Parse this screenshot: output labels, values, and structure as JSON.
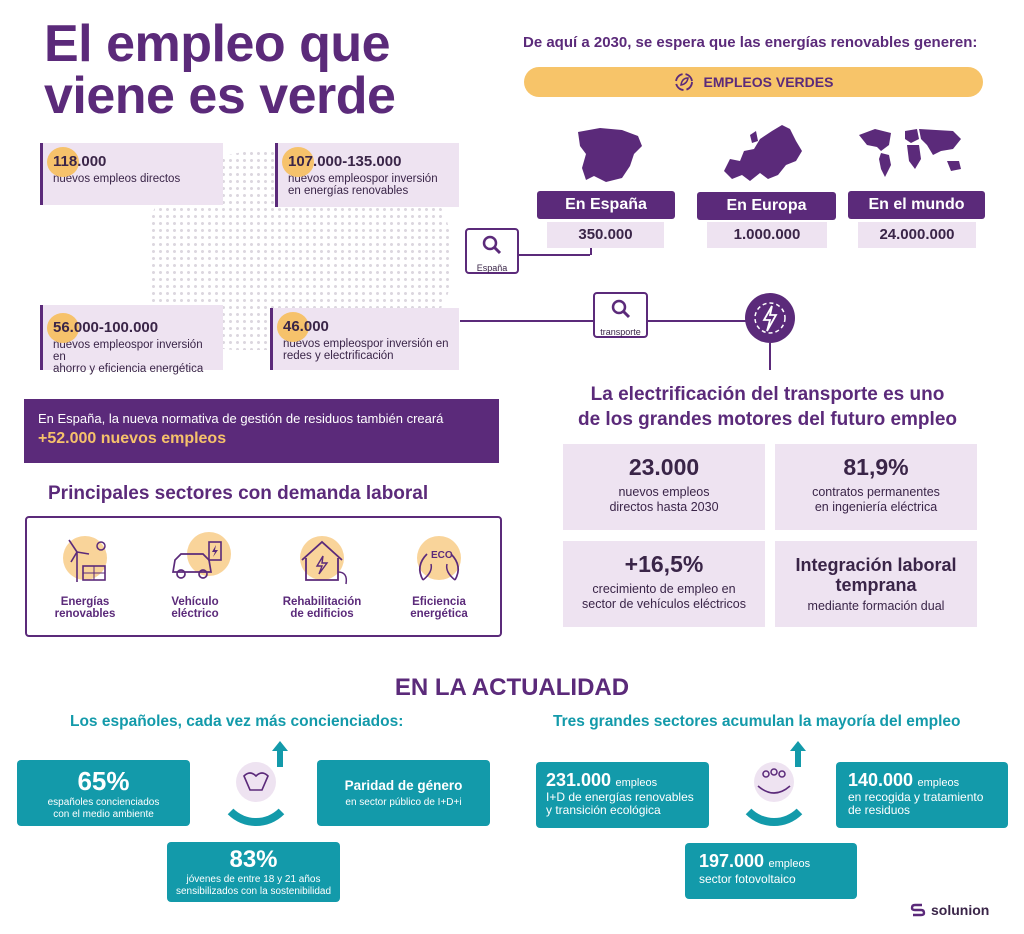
{
  "title": {
    "line1": "El empleo que",
    "line2": "viene es verde"
  },
  "spain_stats": [
    {
      "number": "118.000",
      "text": "nuevos empleos directos"
    },
    {
      "number": "107.000-135.000",
      "text1": "nuevos empleospor inversión",
      "text2": "en energías renovables"
    },
    {
      "number": "56.000-100.000",
      "text1": "nuevos empleospor inversión en",
      "text2": "ahorro y eficiencia energética"
    },
    {
      "number": "46.000",
      "text1": "nuevos empleospor inversión en",
      "text2": "redes y electrificación"
    }
  ],
  "pins": {
    "spain": "España",
    "transport": "transporte"
  },
  "forecast": {
    "heading": "De aquí a 2030, se espera que las energías renovables generen:",
    "banner": "EMPLEOS VERDES",
    "regions": [
      {
        "label": "En España",
        "value": "350.000"
      },
      {
        "label": "En Europa",
        "value": "1.000.000"
      },
      {
        "label": "En el mundo",
        "value": "24.000.000"
      }
    ]
  },
  "waste_notice": {
    "text": "En España, la nueva normativa de gestión de residuos también creará",
    "highlight": "+52.000 nuevos empleos"
  },
  "sectors": {
    "heading": "Principales sectores con demanda laboral",
    "items": [
      {
        "line1": "Energías",
        "line2": "renovables",
        "icon": "solar-wind-icon"
      },
      {
        "line1": "Vehículo",
        "line2": "eléctrico",
        "icon": "electric-car-icon"
      },
      {
        "line1": "Rehabilitación",
        "line2": "de edificios",
        "icon": "house-plug-icon"
      },
      {
        "line1": "Eficiencia",
        "line2": "energética",
        "icon": "eco-leaves-icon"
      }
    ]
  },
  "transport": {
    "heading1": "La electrificación del transporte es uno",
    "heading2": "de los grandes motores del futuro empleo",
    "cards": [
      {
        "big": "23.000",
        "line1": "nuevos empleos",
        "line2": "directos hasta 2030"
      },
      {
        "big": "81,9%",
        "line1": "contratos permanentes",
        "line2": "en ingeniería eléctrica"
      },
      {
        "big": "+16,5%",
        "line1": "crecimiento de empleo en",
        "line2": "sector de vehículos eléctricos"
      },
      {
        "big1": "Integración laboral",
        "big2": "temprana",
        "line1": "mediante formación dual"
      }
    ]
  },
  "current": {
    "heading": "EN LA ACTUALIDAD",
    "left_heading": "Los españoles, cada vez más concienciados:",
    "right_heading": "Tres grandes sectores acumulan la mayoría del empleo",
    "left": [
      {
        "big": "65%",
        "line1": "españoles concienciados",
        "line2": "con el medio ambiente"
      },
      {
        "big": "Paridad de género",
        "line1": "en sector público de I+D+i"
      },
      {
        "big": "83%",
        "line1": "jóvenes de entre 18 y 21 años",
        "line2": "sensibilizados con la sostenibilidad"
      }
    ],
    "right": [
      {
        "big": "231.000",
        "unit": "empleos",
        "line1": "I+D de energías renovables",
        "line2": "y transición ecológica"
      },
      {
        "big": "140.000",
        "unit": "empleos",
        "line1": "en recogida y tratamiento",
        "line2": "de residuos"
      },
      {
        "big": "197.000",
        "unit": "empleos",
        "line1": "sector fotovoltaico"
      }
    ]
  },
  "brand": "solunion",
  "colors": {
    "purple": "#5b2a7a",
    "yellow": "#f6c26b",
    "lavender": "#eee3f1",
    "teal": "#139aaa"
  }
}
